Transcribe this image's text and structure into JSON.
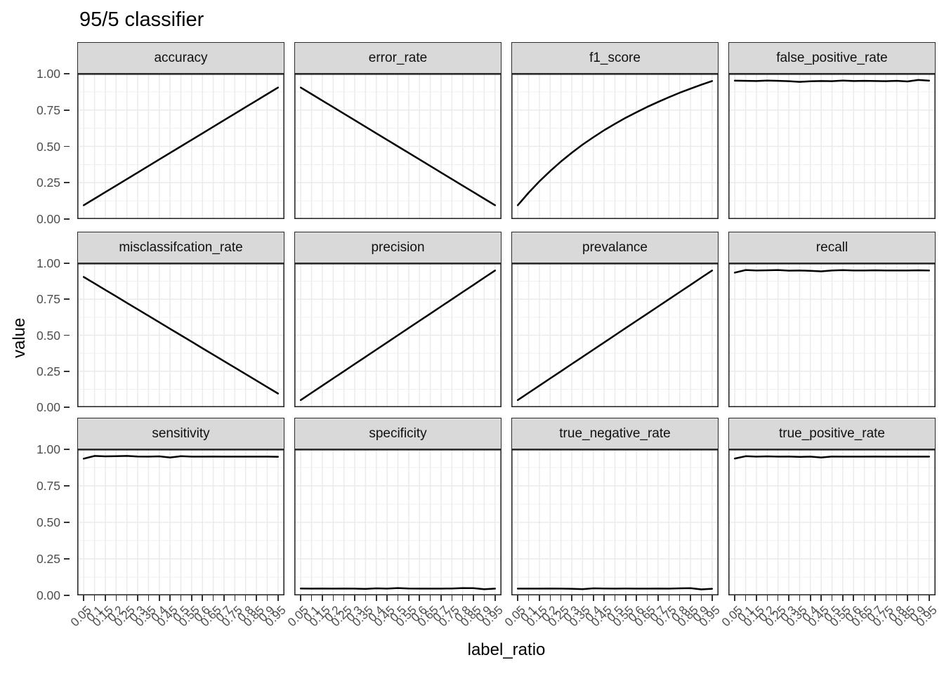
{
  "title": "95/5 classifier",
  "x_axis_title": "label_ratio",
  "y_axis_title": "value",
  "colors": {
    "line": "#000000",
    "strip_fill": "#d9d9d9",
    "strip_border": "#2b2b2b",
    "panel_border": "#2b2b2b",
    "grid": "#ebebeb",
    "tick": "#333333",
    "tick_label": "#4d4d4d"
  },
  "chart_data": {
    "type": "line",
    "title": "95/5 classifier",
    "xlabel": "label_ratio",
    "ylabel": "value",
    "ylim": [
      0,
      1
    ],
    "grid": true,
    "legend": false,
    "y_tick_labels": [
      "1.00",
      "0.75",
      "0.50",
      "0.25",
      "0.00"
    ],
    "y_tick_values": [
      1.0,
      0.75,
      0.5,
      0.25,
      0.0
    ],
    "y_minor_values": [
      0.875,
      0.625,
      0.375,
      0.125
    ],
    "categories": [
      "0.05",
      "0.1",
      "0.15",
      "0.2",
      "0.25",
      "0.3",
      "0.35",
      "0.4",
      "0.45",
      "0.5",
      "0.55",
      "0.6",
      "0.65",
      "0.7",
      "0.75",
      "0.8",
      "0.85",
      "0.9",
      "0.95"
    ],
    "facets": [
      {
        "name": "accuracy",
        "values": [
          0.095,
          0.14,
          0.185,
          0.23,
          0.275,
          0.32,
          0.365,
          0.41,
          0.455,
          0.5,
          0.545,
          0.59,
          0.635,
          0.68,
          0.725,
          0.77,
          0.815,
          0.86,
          0.905
        ]
      },
      {
        "name": "error_rate",
        "values": [
          0.905,
          0.86,
          0.815,
          0.77,
          0.725,
          0.68,
          0.635,
          0.59,
          0.545,
          0.5,
          0.455,
          0.41,
          0.365,
          0.32,
          0.275,
          0.23,
          0.185,
          0.14,
          0.095
        ]
      },
      {
        "name": "f1_score",
        "values": [
          0.095,
          0.181,
          0.259,
          0.33,
          0.396,
          0.456,
          0.512,
          0.563,
          0.611,
          0.655,
          0.697,
          0.735,
          0.772,
          0.806,
          0.838,
          0.869,
          0.897,
          0.924,
          0.95
        ]
      },
      {
        "name": "false_positive_rate",
        "values": [
          0.952,
          0.951,
          0.95,
          0.953,
          0.951,
          0.949,
          0.944,
          0.948,
          0.95,
          0.949,
          0.953,
          0.95,
          0.951,
          0.95,
          0.949,
          0.951,
          0.947,
          0.957,
          0.952
        ]
      },
      {
        "name": "misclassifcation_rate",
        "values": [
          0.905,
          0.86,
          0.815,
          0.77,
          0.725,
          0.68,
          0.635,
          0.59,
          0.545,
          0.5,
          0.455,
          0.41,
          0.365,
          0.32,
          0.275,
          0.23,
          0.185,
          0.14,
          0.095
        ]
      },
      {
        "name": "precision",
        "values": [
          0.05,
          0.1,
          0.15,
          0.2,
          0.25,
          0.3,
          0.35,
          0.4,
          0.45,
          0.5,
          0.55,
          0.6,
          0.65,
          0.7,
          0.75,
          0.8,
          0.85,
          0.9,
          0.95
        ]
      },
      {
        "name": "prevalance",
        "values": [
          0.05,
          0.1,
          0.15,
          0.2,
          0.25,
          0.3,
          0.35,
          0.4,
          0.45,
          0.5,
          0.55,
          0.6,
          0.65,
          0.7,
          0.75,
          0.8,
          0.85,
          0.9,
          0.95
        ]
      },
      {
        "name": "recall",
        "values": [
          0.935,
          0.953,
          0.95,
          0.951,
          0.953,
          0.949,
          0.95,
          0.948,
          0.944,
          0.95,
          0.952,
          0.95,
          0.95,
          0.951,
          0.95,
          0.95,
          0.95,
          0.951,
          0.95
        ]
      },
      {
        "name": "sensitivity",
        "values": [
          0.936,
          0.955,
          0.952,
          0.953,
          0.955,
          0.951,
          0.95,
          0.952,
          0.944,
          0.953,
          0.95,
          0.95,
          0.951,
          0.95,
          0.95,
          0.95,
          0.95,
          0.95,
          0.949
        ]
      },
      {
        "name": "specificity",
        "values": [
          0.047,
          0.046,
          0.047,
          0.046,
          0.047,
          0.046,
          0.044,
          0.048,
          0.046,
          0.05,
          0.047,
          0.046,
          0.046,
          0.046,
          0.047,
          0.05,
          0.049,
          0.042,
          0.046
        ]
      },
      {
        "name": "true_negative_rate",
        "values": [
          0.046,
          0.046,
          0.046,
          0.047,
          0.046,
          0.045,
          0.043,
          0.048,
          0.047,
          0.046,
          0.047,
          0.046,
          0.046,
          0.047,
          0.046,
          0.048,
          0.049,
          0.041,
          0.045
        ]
      },
      {
        "name": "true_positive_rate",
        "values": [
          0.937,
          0.953,
          0.95,
          0.952,
          0.95,
          0.951,
          0.948,
          0.95,
          0.944,
          0.951,
          0.95,
          0.95,
          0.95,
          0.951,
          0.95,
          0.95,
          0.95,
          0.95,
          0.95
        ]
      }
    ]
  }
}
